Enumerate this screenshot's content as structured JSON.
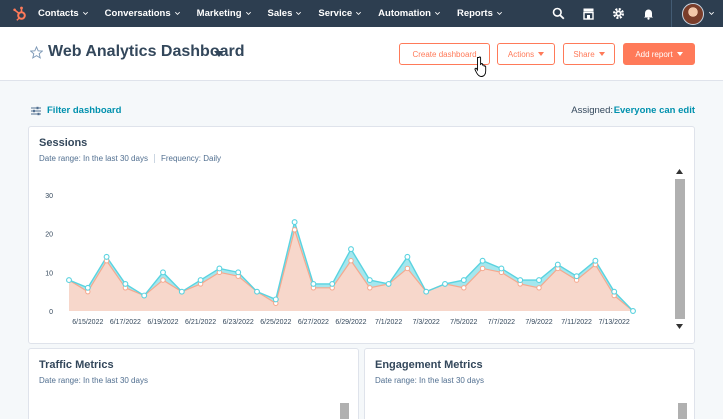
{
  "nav": {
    "items": [
      {
        "label": "Contacts"
      },
      {
        "label": "Conversations"
      },
      {
        "label": "Marketing"
      },
      {
        "label": "Sales"
      },
      {
        "label": "Service"
      },
      {
        "label": "Automation"
      },
      {
        "label": "Reports"
      }
    ],
    "icons": [
      "search-icon",
      "marketplace-icon",
      "settings-icon",
      "notifications-icon"
    ]
  },
  "header": {
    "title": "Web Analytics Dashboard",
    "create_dashboard": "Create dashboard",
    "actions": "Actions",
    "share": "Share",
    "add_report": "Add report"
  },
  "filter": {
    "label": "Filter dashboard",
    "assigned_label": "Assigned:",
    "assigned_value": "Everyone can edit"
  },
  "sessions": {
    "title": "Sessions",
    "date_range": "Date range: In the last 30 days",
    "frequency": "Frequency: Daily"
  },
  "traffic": {
    "title": "Traffic Metrics",
    "date_range": "Date range: In the last 30 days"
  },
  "engagement": {
    "title": "Engagement Metrics",
    "date_range": "Date range: In the last 30 days"
  },
  "colors": {
    "nav_bg": "#2d3e50",
    "accent": "#ff7a59",
    "link": "#0091ae",
    "series_teal": "#5ad3e0",
    "series_orange": "#f5a88e"
  },
  "chart_data": {
    "type": "area",
    "x": [
      "6/14/2022",
      "6/15/2022",
      "6/16/2022",
      "6/17/2022",
      "6/18/2022",
      "6/19/2022",
      "6/20/2022",
      "6/21/2022",
      "6/22/2022",
      "6/23/2022",
      "6/24/2022",
      "6/25/2022",
      "6/26/2022",
      "6/27/2022",
      "6/28/2022",
      "6/29/2022",
      "6/30/2022",
      "7/1/2022",
      "7/2/2022",
      "7/3/2022",
      "7/4/2022",
      "7/5/2022",
      "7/6/2022",
      "7/7/2022",
      "7/8/2022",
      "7/9/2022",
      "7/10/2022",
      "7/11/2022",
      "7/12/2022",
      "7/13/2022",
      "7/14/2022"
    ],
    "tick_labels": [
      "6/15/2022",
      "6/17/2022",
      "6/19/2022",
      "6/21/2022",
      "6/23/2022",
      "6/25/2022",
      "6/27/2022",
      "6/29/2022",
      "7/1/2022",
      "7/3/2022",
      "7/5/2022",
      "7/7/2022",
      "7/9/2022",
      "7/11/2022",
      "7/13/2022"
    ],
    "series": [
      {
        "values": [
          8,
          6,
          14,
          7,
          4,
          10,
          5,
          8,
          11,
          10,
          5,
          3,
          23,
          7,
          7,
          16,
          8,
          7,
          14,
          5,
          7,
          8,
          13,
          11,
          8,
          8,
          12,
          9,
          13,
          5,
          0
        ]
      },
      {
        "values": [
          8,
          5,
          13,
          6,
          4,
          8,
          5,
          7,
          10,
          9,
          5,
          2,
          21,
          6,
          6,
          13,
          6,
          7,
          11,
          5,
          7,
          6,
          11,
          10,
          7,
          6,
          11,
          8,
          12,
          4,
          0
        ]
      }
    ],
    "ylim": [
      0,
      30
    ],
    "yticks": [
      0,
      10,
      20,
      30
    ],
    "grid": false
  }
}
